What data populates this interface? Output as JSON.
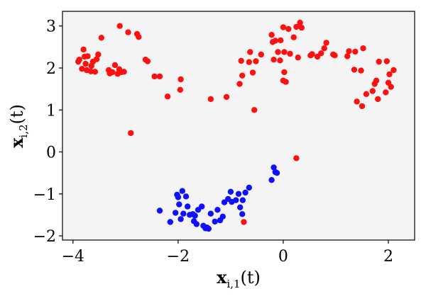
{
  "chart_data": {
    "type": "scatter",
    "xlabel": {
      "base": "x",
      "sub": "i,1",
      "arg": "(t)"
    },
    "ylabel": {
      "base": "x",
      "sub": "i,2",
      "arg": "(t)"
    },
    "xlim": [
      -4.2,
      2.5
    ],
    "ylim": [
      -2.1,
      3.35
    ],
    "x_ticks": [
      -4,
      -2,
      0,
      2
    ],
    "x_tick_labels": [
      "−4",
      "−2",
      "0",
      "2"
    ],
    "y_ticks": [
      -2,
      -1,
      0,
      1,
      2,
      3
    ],
    "y_tick_labels": [
      "−2",
      "−1",
      "0",
      "1",
      "2",
      "3"
    ],
    "grid": false,
    "background": "#f4f4f4",
    "series": [
      {
        "color": "#ff1010",
        "points": [
          [
            -3.9,
            2.15
          ],
          [
            -3.88,
            2.2
          ],
          [
            -3.83,
            1.98
          ],
          [
            -3.8,
            2.44
          ],
          [
            -3.78,
            2.27
          ],
          [
            -3.76,
            2.1
          ],
          [
            -3.74,
            1.95
          ],
          [
            -3.72,
            2.28
          ],
          [
            -3.66,
            1.92
          ],
          [
            -3.65,
            2.05
          ],
          [
            -3.62,
            2.15
          ],
          [
            -3.58,
            1.91
          ],
          [
            -3.55,
            2.21
          ],
          [
            -3.52,
            2.32
          ],
          [
            -3.46,
            2.72
          ],
          [
            -3.32,
            1.95
          ],
          [
            -3.3,
            1.87
          ],
          [
            -3.25,
            1.9
          ],
          [
            -3.2,
            2.07
          ],
          [
            -3.15,
            1.86
          ],
          [
            -3.12,
            1.97
          ],
          [
            -3.11,
            3.0
          ],
          [
            -3.08,
            1.9
          ],
          [
            -3.03,
            1.91
          ],
          [
            -2.95,
            2.85
          ],
          [
            -2.9,
            0.45
          ],
          [
            -2.78,
            2.81
          ],
          [
            -2.75,
            2.74
          ],
          [
            -2.62,
            2.2
          ],
          [
            -2.58,
            2.16
          ],
          [
            -2.45,
            1.8
          ],
          [
            -2.35,
            1.8
          ],
          [
            -2.2,
            1.32
          ],
          [
            -1.96,
            1.48
          ],
          [
            -1.95,
            1.73
          ],
          [
            -1.38,
            1.26
          ],
          [
            -1.08,
            1.31
          ],
          [
            -0.83,
            1.62
          ],
          [
            -0.8,
            2.17
          ],
          [
            -0.78,
            1.82
          ],
          [
            -0.65,
            2.14
          ],
          [
            -0.63,
            2.38
          ],
          [
            -0.58,
            1.89
          ],
          [
            -0.55,
            1.0
          ],
          [
            -0.52,
            2.16
          ],
          [
            -0.42,
            2.32
          ],
          [
            -0.22,
            2.79
          ],
          [
            -0.2,
            2.62
          ],
          [
            -0.18,
            2.2
          ],
          [
            -0.15,
            2.65
          ],
          [
            -0.1,
            2.38
          ],
          [
            -0.06,
            2.18
          ],
          [
            -0.05,
            2.66
          ],
          [
            0.0,
            1.7
          ],
          [
            0.0,
            2.97
          ],
          [
            0.02,
            2.38
          ],
          [
            0.02,
            1.9
          ],
          [
            0.05,
            1.67
          ],
          [
            0.1,
            2.93
          ],
          [
            0.13,
            2.34
          ],
          [
            0.2,
            2.73
          ],
          [
            0.25,
            2.98
          ],
          [
            0.25,
            -0.15
          ],
          [
            0.28,
            2.25
          ],
          [
            0.32,
            3.08
          ],
          [
            0.35,
            2.96
          ],
          [
            0.52,
            2.3
          ],
          [
            0.55,
            2.33
          ],
          [
            0.65,
            2.27
          ],
          [
            0.72,
            2.35
          ],
          [
            0.78,
            2.47
          ],
          [
            0.82,
            2.6
          ],
          [
            0.95,
            2.32
          ],
          [
            0.98,
            2.3
          ],
          [
            1.22,
            2.28
          ],
          [
            1.25,
            2.4
          ],
          [
            1.35,
            1.96
          ],
          [
            1.37,
            2.39
          ],
          [
            1.4,
            1.2
          ],
          [
            1.48,
            1.94
          ],
          [
            1.5,
            1.09
          ],
          [
            1.52,
            2.47
          ],
          [
            1.58,
            1.38
          ],
          [
            1.7,
            1.45
          ],
          [
            1.74,
            1.62
          ],
          [
            1.77,
            1.7
          ],
          [
            1.8,
            1.26
          ],
          [
            1.82,
            2.15
          ],
          [
            1.95,
            1.42
          ],
          [
            1.97,
            2.16
          ],
          [
            2.0,
            1.65
          ],
          [
            2.02,
            1.85
          ],
          [
            2.05,
            1.55
          ],
          [
            2.1,
            1.95
          ],
          [
            -0.75,
            -1.67
          ]
        ]
      },
      {
        "color": "#1010ff",
        "points": [
          [
            -2.35,
            -1.4
          ],
          [
            -2.15,
            -1.67
          ],
          [
            -2.05,
            -1.45
          ],
          [
            -2.02,
            -1.02
          ],
          [
            -2.0,
            -1.08
          ],
          [
            -1.98,
            -1.25
          ],
          [
            -1.95,
            -1.6
          ],
          [
            -1.92,
            -0.93
          ],
          [
            -1.9,
            -1.47
          ],
          [
            -1.85,
            -1.06
          ],
          [
            -1.82,
            -1.3
          ],
          [
            -1.78,
            -1.5
          ],
          [
            -1.72,
            -1.48
          ],
          [
            -1.7,
            -1.65
          ],
          [
            -1.68,
            -1.52
          ],
          [
            -1.65,
            -1.72
          ],
          [
            -1.62,
            -1.38
          ],
          [
            -1.55,
            -1.3
          ],
          [
            -1.52,
            -1.76
          ],
          [
            -1.48,
            -1.82
          ],
          [
            -1.45,
            -1.8
          ],
          [
            -1.42,
            -1.83
          ],
          [
            -1.38,
            -1.47
          ],
          [
            -1.3,
            -1.66
          ],
          [
            -1.25,
            -1.38
          ],
          [
            -1.2,
            -1.63
          ],
          [
            -1.15,
            -1.54
          ],
          [
            -1.12,
            -1.2
          ],
          [
            -1.05,
            -1.12
          ],
          [
            -1.0,
            -0.95
          ],
          [
            -0.98,
            -1.19
          ],
          [
            -0.9,
            -1.15
          ],
          [
            -0.85,
            -1.0
          ],
          [
            -0.82,
            -1.32
          ],
          [
            -0.78,
            -1.48
          ],
          [
            -0.77,
            -1.15
          ],
          [
            -0.72,
            -0.97
          ],
          [
            -0.65,
            -0.85
          ],
          [
            -0.22,
            -0.67
          ],
          [
            -0.18,
            -0.37
          ],
          [
            -0.15,
            -0.48
          ],
          [
            -0.12,
            -0.5
          ]
        ]
      }
    ]
  }
}
